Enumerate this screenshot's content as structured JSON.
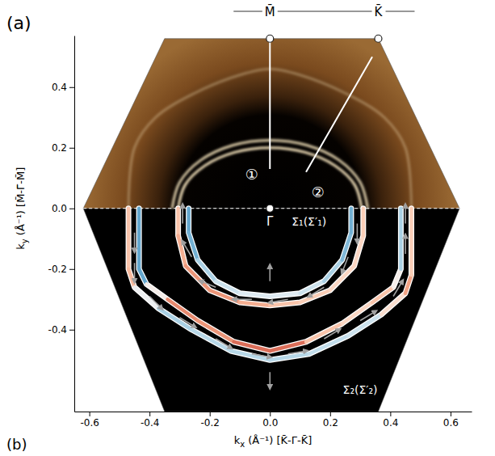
{
  "chart_data": {
    "type": "fermi_surface",
    "panel_labels": [
      "(a)",
      "(b)"
    ],
    "x_label": {
      "symbol": "k",
      "subscript": "x",
      "text": " (Å⁻¹) [K̄-Γ̄-K̄]"
    },
    "y_label": {
      "symbol": "k",
      "subscript": "y",
      "text": " (Å⁻¹) [M̄-Γ̄-M̄]"
    },
    "xlim": [
      -0.65,
      0.67
    ],
    "ylim": [
      -0.67,
      0.57
    ],
    "xticks": [
      -0.6,
      -0.4,
      -0.2,
      {
        "value": 0,
        "label": "0.0"
      },
      0.2,
      0.4,
      0.6
    ],
    "yticks": [
      -0.4,
      -0.2,
      {
        "value": 0,
        "label": "0.0"
      },
      0.2,
      0.4
    ],
    "brillouin_zone": {
      "x": [
        -0.62,
        -0.35,
        0.36,
        0.63,
        0.36,
        -0.35
      ],
      "y": [
        0,
        0.56,
        0.56,
        0,
        -0.67,
        -0.67
      ]
    },
    "points": [
      {
        "label": "Γ̄",
        "x": 0,
        "y": 0
      },
      {
        "label": "M̄",
        "x": 0,
        "y": 0.56
      },
      {
        "label": "K̄",
        "x": 0.36,
        "y": 0.56
      }
    ],
    "cuts": [
      {
        "label": "①",
        "x": [
          0,
          0
        ],
        "y": [
          0.13,
          0.56
        ],
        "label_at": [
          -0.06,
          0.11
        ]
      },
      {
        "label": "②",
        "x": [
          0.12,
          0.34
        ],
        "y": [
          0.12,
          0.5
        ],
        "label_at": [
          0.16,
          0.05
        ]
      }
    ],
    "intensity_map": {
      "ridges": [
        {
          "x": [
            0.305,
            0.282,
            0.216,
            0.117,
            0,
            -0.117,
            -0.216,
            -0.282,
            -0.305
          ],
          "y": [
            0,
            0.077,
            0.141,
            0.185,
            0.2,
            0.185,
            0.141,
            0.077,
            0
          ],
          "intensity": 1
        },
        {
          "x": [
            0.325,
            0.3,
            0.23,
            0.124,
            0,
            -0.124,
            -0.23,
            -0.3,
            -0.325
          ],
          "y": [
            0,
            0.086,
            0.159,
            0.208,
            0.225,
            0.208,
            0.159,
            0.086,
            0
          ],
          "intensity": 0.9
        },
        {
          "x": [
            -0.47,
            -0.45,
            -0.38,
            -0.25,
            -0.1,
            0,
            0.1,
            0.25,
            0.38,
            0.45,
            0.47
          ],
          "y": [
            0,
            0.2,
            0.3,
            0.38,
            0.44,
            0.46,
            0.44,
            0.38,
            0.3,
            0.2,
            0
          ],
          "intensity": 0.35
        }
      ]
    },
    "series": [
      {
        "x": [
          -0.27,
          -0.27,
          -0.24,
          -0.18,
          -0.1,
          0,
          0.1,
          0.18,
          0.24,
          0.27,
          0.27
        ],
        "y": [
          0,
          -0.08,
          -0.17,
          -0.24,
          -0.28,
          -0.29,
          -0.28,
          -0.24,
          -0.17,
          -0.08,
          0
        ],
        "spin": [
          -0.6,
          -0.7,
          -0.5,
          -0.3,
          -0.2,
          -0.1,
          -0.2,
          -0.3,
          -0.5,
          -0.6,
          -0.6
        ]
      },
      {
        "x": [
          -0.305,
          -0.305,
          -0.28,
          -0.2,
          -0.1,
          0,
          0.1,
          0.2,
          0.28,
          0.31,
          0.31
        ],
        "y": [
          0,
          -0.09,
          -0.19,
          -0.27,
          -0.31,
          -0.32,
          -0.31,
          -0.27,
          -0.19,
          -0.09,
          0
        ],
        "spin": [
          0.3,
          0.4,
          0.5,
          0.6,
          0.5,
          0.4,
          0.3,
          0.3,
          0.2,
          0.3,
          0.3
        ]
      },
      {
        "x": [
          -0.435,
          -0.435,
          -0.41,
          -0.34,
          -0.24,
          -0.12,
          0,
          0.12,
          0.24,
          0.34,
          0.41,
          0.435,
          0.435
        ],
        "y": [
          0,
          -0.2,
          -0.25,
          -0.3,
          -0.37,
          -0.44,
          -0.47,
          -0.44,
          -0.38,
          -0.31,
          -0.26,
          -0.2,
          0
        ],
        "spin": [
          -0.5,
          -0.8,
          -0.5,
          0.6,
          0.6,
          0.5,
          0.9,
          0.5,
          0.2,
          0.3,
          0.4,
          -0.3,
          -0.5
        ]
      },
      {
        "x": [
          -0.47,
          -0.47,
          -0.45,
          -0.37,
          -0.26,
          -0.13,
          0,
          0.13,
          0.26,
          0.37,
          0.45,
          0.47,
          0.47
        ],
        "y": [
          0,
          -0.2,
          -0.26,
          -0.33,
          -0.4,
          -0.47,
          -0.5,
          -0.48,
          -0.42,
          -0.35,
          -0.28,
          -0.22,
          0
        ],
        "spin": [
          0.2,
          0.5,
          0.3,
          -0.4,
          -0.4,
          -0.3,
          -0.4,
          -0.3,
          -0.3,
          -0.2,
          0.6,
          0.4,
          0.2
        ]
      }
    ],
    "contour_labels": [
      {
        "text": "Σ₁(Σ′₁)",
        "at": [
          0.13,
          -0.045
        ]
      },
      {
        "text": "Σ₂(Σ′₂)",
        "at": [
          0.3,
          -0.6
        ]
      }
    ],
    "spin_arrows": {
      "x": [
        -0.29,
        -0.26,
        -0.18,
        -0.06,
        0.06,
        0.18,
        0.26,
        0.29,
        -0.45,
        -0.45,
        -0.4,
        -0.3,
        -0.18,
        -0.06,
        0.06,
        0.18,
        0.3,
        0.41,
        0.45,
        0.45,
        0,
        0
      ],
      "y": [
        -0.05,
        -0.16,
        -0.26,
        -0.3,
        -0.3,
        -0.26,
        -0.16,
        -0.05,
        -0.08,
        -0.18,
        -0.29,
        -0.36,
        -0.43,
        -0.48,
        -0.48,
        -0.43,
        -0.37,
        -0.29,
        -0.15,
        -0.05,
        -0.24,
        -0.54
      ],
      "dx": [
        0,
        -0.03,
        -0.05,
        -0.06,
        -0.06,
        -0.05,
        -0.02,
        0,
        0,
        0,
        0.04,
        0.05,
        0.05,
        0.06,
        0.06,
        0.05,
        0.05,
        0.03,
        0,
        0,
        0,
        0
      ],
      "dy": [
        0.06,
        0.05,
        0.02,
        0,
        -0.01,
        -0.03,
        -0.05,
        -0.06,
        -0.06,
        -0.06,
        -0.04,
        -0.03,
        -0.03,
        -0.01,
        0.01,
        0.03,
        0.03,
        0.05,
        0.06,
        0.06,
        0.05,
        -0.05
      ]
    }
  }
}
